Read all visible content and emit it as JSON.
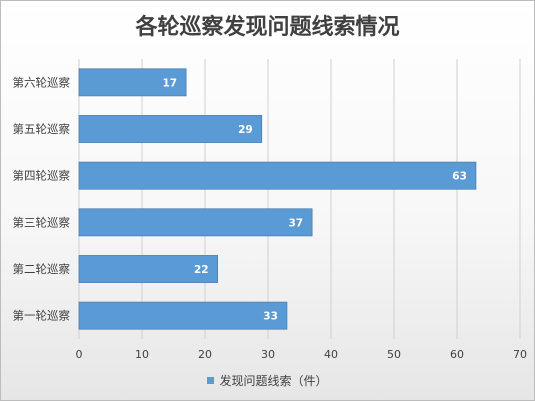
{
  "chart_data": {
    "type": "bar",
    "orientation": "horizontal",
    "title": "各轮巡察发现问题线索情况",
    "categories": [
      "第六轮巡察",
      "第五轮巡察",
      "第四轮巡察",
      "第三轮巡察",
      "第二轮巡察",
      "第一轮巡察"
    ],
    "series": [
      {
        "name": "发现问题线索（件）",
        "values": [
          17,
          29,
          63,
          37,
          22,
          33
        ]
      }
    ],
    "xlim": [
      0,
      70
    ],
    "x_ticks": [
      0,
      10,
      20,
      30,
      40,
      50,
      60,
      70
    ],
    "grid": true,
    "legend_position": "bottom",
    "bar_color": "#5b9bd5",
    "bar_stroke": "#4a7fb0",
    "grid_color": "#d0d0d0"
  }
}
